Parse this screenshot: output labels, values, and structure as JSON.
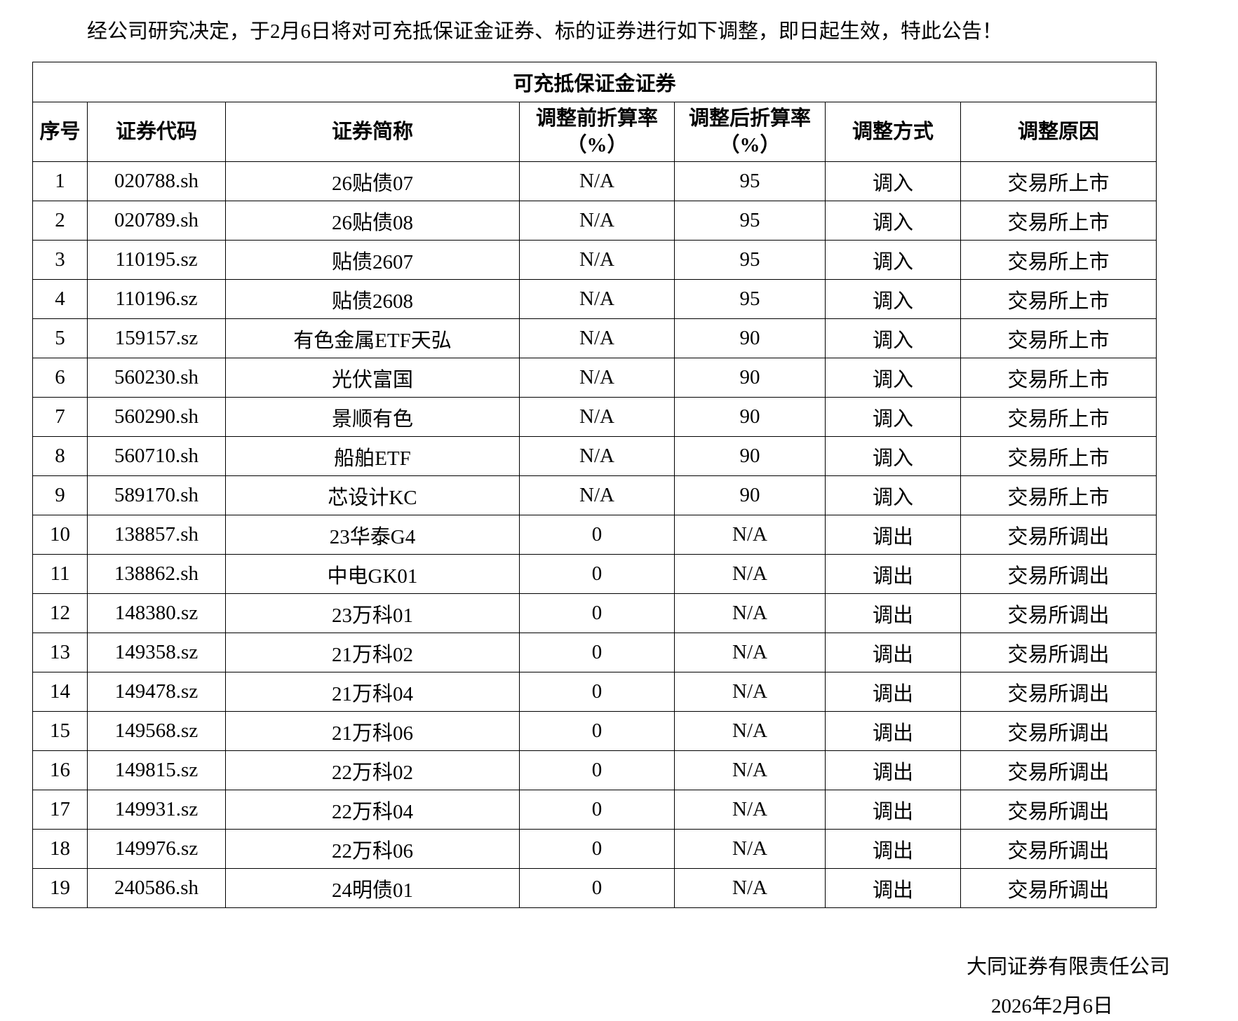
{
  "intro": "经公司研究决定，于2月6日将对可充抵保证金证券、标的证券进行如下调整，即日起生效，特此公告！",
  "table": {
    "title": "可充抵保证金证券",
    "headers": [
      "序号",
      "证券代码",
      "证券简称",
      "调整前折算率（%）",
      "调整后折算率（%）",
      "调整方式",
      "调整原因"
    ],
    "rows": [
      [
        "1",
        "020788.sh",
        "26贴债07",
        "N/A",
        "95",
        "调入",
        "交易所上市"
      ],
      [
        "2",
        "020789.sh",
        "26贴债08",
        "N/A",
        "95",
        "调入",
        "交易所上市"
      ],
      [
        "3",
        "110195.sz",
        "贴债2607",
        "N/A",
        "95",
        "调入",
        "交易所上市"
      ],
      [
        "4",
        "110196.sz",
        "贴债2608",
        "N/A",
        "95",
        "调入",
        "交易所上市"
      ],
      [
        "5",
        "159157.sz",
        "有色金属ETF天弘",
        "N/A",
        "90",
        "调入",
        "交易所上市"
      ],
      [
        "6",
        "560230.sh",
        "光伏富国",
        "N/A",
        "90",
        "调入",
        "交易所上市"
      ],
      [
        "7",
        "560290.sh",
        "景顺有色",
        "N/A",
        "90",
        "调入",
        "交易所上市"
      ],
      [
        "8",
        "560710.sh",
        "船舶ETF",
        "N/A",
        "90",
        "调入",
        "交易所上市"
      ],
      [
        "9",
        "589170.sh",
        "芯设计KC",
        "N/A",
        "90",
        "调入",
        "交易所上市"
      ],
      [
        "10",
        "138857.sh",
        "23华泰G4",
        "0",
        "N/A",
        "调出",
        "交易所调出"
      ],
      [
        "11",
        "138862.sh",
        "中电GK01",
        "0",
        "N/A",
        "调出",
        "交易所调出"
      ],
      [
        "12",
        "148380.sz",
        "23万科01",
        "0",
        "N/A",
        "调出",
        "交易所调出"
      ],
      [
        "13",
        "149358.sz",
        "21万科02",
        "0",
        "N/A",
        "调出",
        "交易所调出"
      ],
      [
        "14",
        "149478.sz",
        "21万科04",
        "0",
        "N/A",
        "调出",
        "交易所调出"
      ],
      [
        "15",
        "149568.sz",
        "21万科06",
        "0",
        "N/A",
        "调出",
        "交易所调出"
      ],
      [
        "16",
        "149815.sz",
        "22万科02",
        "0",
        "N/A",
        "调出",
        "交易所调出"
      ],
      [
        "17",
        "149931.sz",
        "22万科04",
        "0",
        "N/A",
        "调出",
        "交易所调出"
      ],
      [
        "18",
        "149976.sz",
        "22万科06",
        "0",
        "N/A",
        "调出",
        "交易所调出"
      ],
      [
        "19",
        "240586.sh",
        "24明债01",
        "0",
        "N/A",
        "调出",
        "交易所调出"
      ]
    ]
  },
  "footer": {
    "company": "大同证券有限责任公司",
    "date": "2026年2月6日"
  }
}
